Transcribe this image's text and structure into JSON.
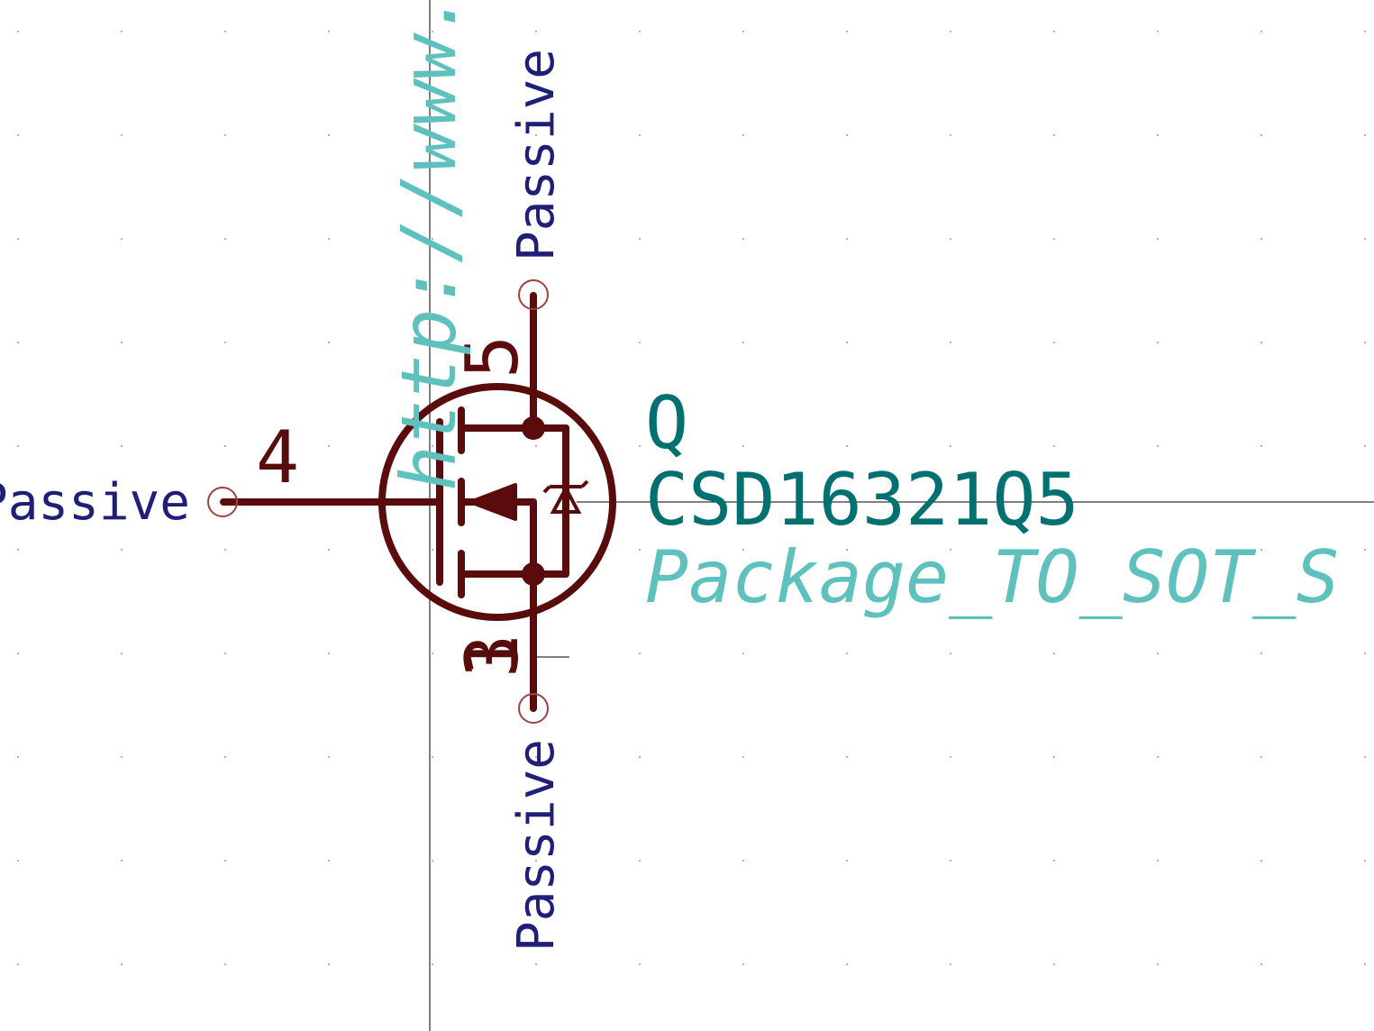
{
  "colors": {
    "background": "#ffffff",
    "body": "#5a0c0c",
    "pin_name": "#1f1f7a",
    "reference": "#007070",
    "footprint": "#5fc1bd",
    "datasheet": "#5fc1bd",
    "axis": "#000000",
    "pin_endpoint": "#a04040",
    "grid_dot": "#9a9a9a"
  },
  "symbol": {
    "reference": "Q",
    "value": "CSD16321Q5",
    "footprint": "Package_TO_SOT_S",
    "datasheet": "http://www.t"
  },
  "pins": {
    "gate": {
      "number": "4",
      "type": "Passive"
    },
    "drain": {
      "number": "5",
      "type": "Passive"
    },
    "source": {
      "number": "1",
      "type": "Passive"
    },
    "source_overlap_digit": "3"
  },
  "icons": {
    "diode": "diode-icon",
    "arrow": "channel-arrow-icon"
  }
}
